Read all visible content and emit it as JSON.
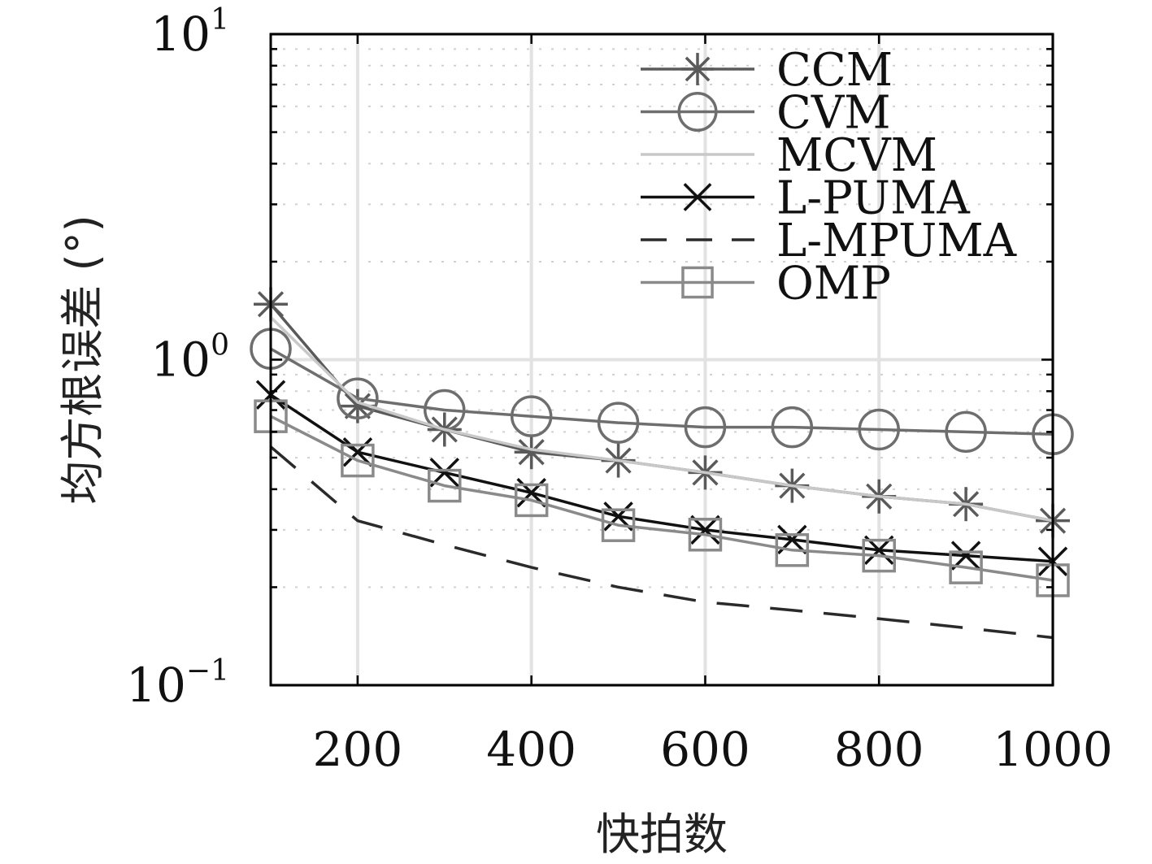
{
  "chart_data": {
    "type": "line",
    "xlabel": "快拍数",
    "ylabel": "均方根误差 (°)",
    "x": [
      100,
      200,
      300,
      400,
      500,
      600,
      700,
      800,
      900,
      1000
    ],
    "xlim": [
      100,
      1000
    ],
    "ylim": [
      0.1,
      10
    ],
    "yscale": "log",
    "x_ticks": [
      "200",
      "400",
      "600",
      "800",
      "1000"
    ],
    "x_tick_values": [
      200,
      400,
      600,
      800,
      1000
    ],
    "y_ticks": [
      {
        "value": 0.1,
        "base": "10",
        "exp": "−1"
      },
      {
        "value": 1,
        "base": "10",
        "exp": "0"
      },
      {
        "value": 10,
        "base": "10",
        "exp": "1"
      }
    ],
    "grid": true,
    "legend_position": "top-right",
    "series": [
      {
        "name": "CCM",
        "marker": "asterisk",
        "dash": "solid",
        "color": "#5a5a5a",
        "values": [
          1.48,
          0.72,
          0.61,
          0.52,
          0.49,
          0.45,
          0.41,
          0.38,
          0.36,
          0.32
        ]
      },
      {
        "name": "CVM",
        "marker": "circle",
        "dash": "solid",
        "color": "#6e6e6e",
        "values": [
          1.08,
          0.76,
          0.7,
          0.67,
          0.64,
          0.62,
          0.62,
          0.61,
          0.6,
          0.59
        ]
      },
      {
        "name": "MCVM",
        "marker": "none",
        "dash": "solid",
        "color": "#c8c8c8",
        "values": [
          1.35,
          0.74,
          0.61,
          0.53,
          0.49,
          0.45,
          0.41,
          0.38,
          0.36,
          0.32
        ]
      },
      {
        "name": "L-PUMA",
        "marker": "x",
        "dash": "solid",
        "color": "#111111",
        "values": [
          0.78,
          0.52,
          0.45,
          0.39,
          0.33,
          0.3,
          0.28,
          0.26,
          0.25,
          0.24
        ]
      },
      {
        "name": "L-MPUMA",
        "marker": "none",
        "dash": "dashed",
        "color": "#2a2a2a",
        "values": [
          0.54,
          0.32,
          0.27,
          0.23,
          0.2,
          0.18,
          0.17,
          0.16,
          0.15,
          0.14
        ]
      },
      {
        "name": "OMP",
        "marker": "square",
        "dash": "solid",
        "color": "#8a8a8a",
        "values": [
          0.67,
          0.49,
          0.41,
          0.37,
          0.31,
          0.29,
          0.26,
          0.25,
          0.23,
          0.21
        ]
      }
    ]
  }
}
